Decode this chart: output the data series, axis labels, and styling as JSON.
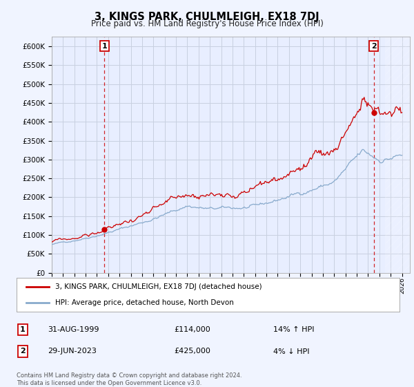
{
  "title": "3, KINGS PARK, CHULMLEIGH, EX18 7DJ",
  "subtitle": "Price paid vs. HM Land Registry's House Price Index (HPI)",
  "ylim": [
    0,
    620000
  ],
  "grid_color": "#c8d0e0",
  "background_color": "#f0f4ff",
  "plot_bg_color": "#e8eeff",
  "red_line_color": "#cc0000",
  "blue_line_color": "#88aacc",
  "sale1_year": 1999.667,
  "sale1_price": 114000,
  "sale2_year": 2023.5,
  "sale2_price": 425000,
  "legend_line1": "3, KINGS PARK, CHULMLEIGH, EX18 7DJ (detached house)",
  "legend_line2": "HPI: Average price, detached house, North Devon",
  "table_row1": [
    "1",
    "31-AUG-1999",
    "£114,000",
    "14% ↑ HPI"
  ],
  "table_row2": [
    "2",
    "29-JUN-2023",
    "£425,000",
    "4% ↓ HPI"
  ],
  "footer": "Contains HM Land Registry data © Crown copyright and database right 2024.\nThis data is licensed under the Open Government Licence v3.0."
}
